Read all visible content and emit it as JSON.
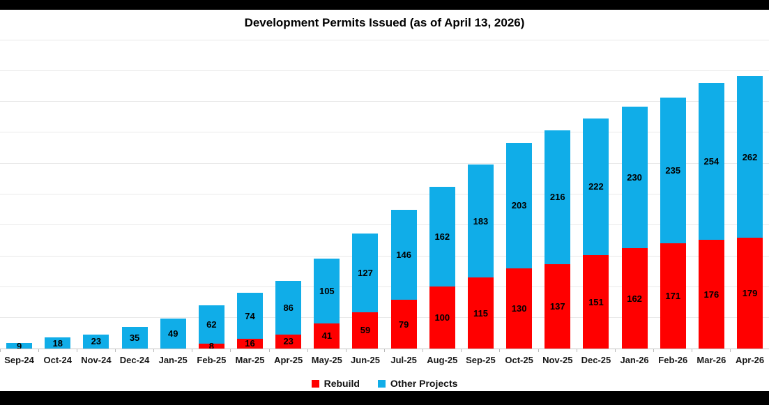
{
  "page": {
    "title": "Development Permits Issued (as of April 13, 2026)"
  },
  "chart_data": {
    "type": "bar",
    "stacked": true,
    "title": "Development Permits Issued (as of April 13, 2026)",
    "categories": [
      "Sep-24",
      "Oct-24",
      "Nov-24",
      "Dec-24",
      "Jan-25",
      "Feb-25",
      "Mar-25",
      "Apr-25",
      "May-25",
      "Jun-25",
      "Jul-25",
      "Aug-25",
      "Sep-25",
      "Oct-25",
      "Nov-25",
      "Dec-25",
      "Jan-26",
      "Feb-26",
      "Mar-26",
      "Apr-26"
    ],
    "series": [
      {
        "name": "Rebuild",
        "color": "#ff0000",
        "values": [
          0,
          0,
          0,
          0,
          0,
          8,
          16,
          23,
          41,
          59,
          79,
          100,
          115,
          130,
          137,
          151,
          162,
          171,
          176,
          179
        ]
      },
      {
        "name": "Other Projects",
        "color": "#10ade8",
        "values": [
          9,
          18,
          23,
          35,
          49,
          62,
          74,
          86,
          105,
          127,
          146,
          162,
          183,
          203,
          216,
          222,
          230,
          235,
          254,
          262
        ]
      }
    ],
    "xlabel": "",
    "ylabel": "",
    "ylim": [
      0,
      500
    ],
    "gridline_step": 50,
    "grid": true,
    "y_axis_labels_visible": false,
    "data_labels": "segment-center",
    "legend_position": "bottom"
  }
}
